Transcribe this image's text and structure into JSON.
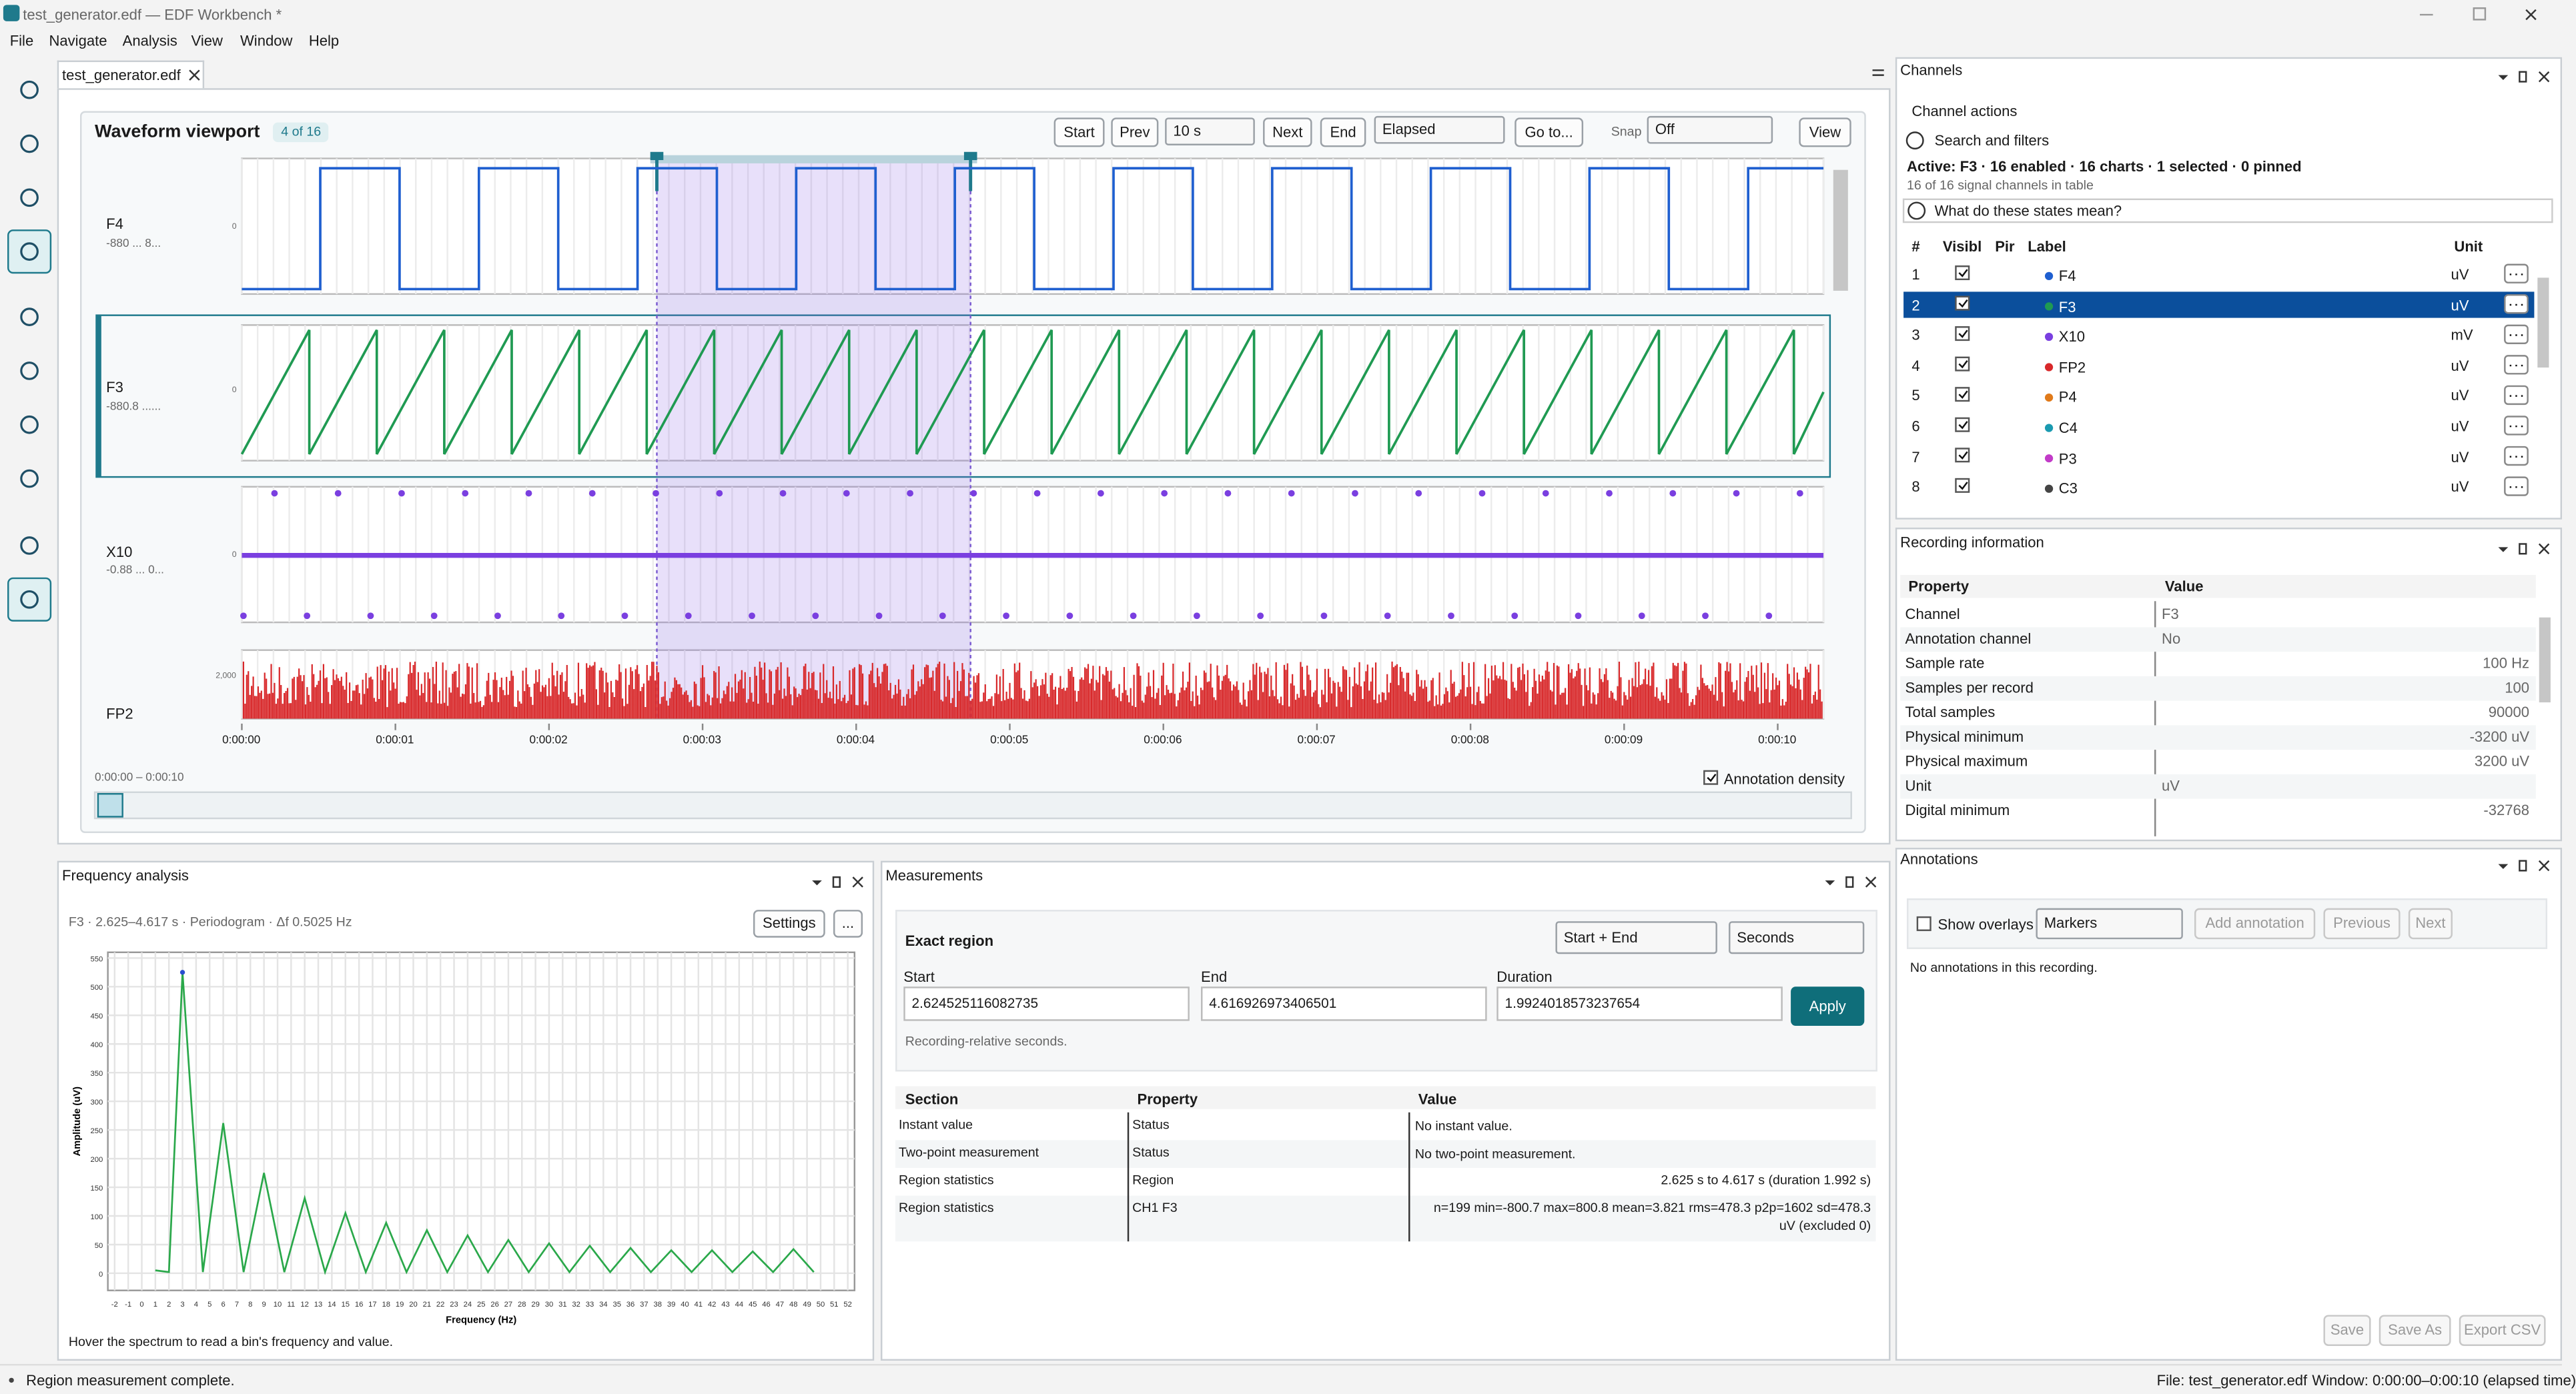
{
  "window": {
    "title": "test_generator.edf — EDF Workbench *"
  },
  "menu": [
    "File",
    "Navigate",
    "Analysis",
    "View",
    "Window",
    "Help"
  ],
  "tab": "test_generator.edf",
  "viewport": {
    "title": "Waveform viewport",
    "badge": "4 of 16",
    "start": "Start",
    "prev": "Prev",
    "duration": "10 s",
    "next": "Next",
    "end": "End",
    "time_mode": "Elapsed",
    "goto": "Go to...",
    "snap_label": "Snap",
    "snap": "Off",
    "view": "View",
    "channels": [
      {
        "name": "F4",
        "range": "-880 ... 8...",
        "zero": "0",
        "color": "#1f5fd0"
      },
      {
        "name": "F3",
        "range": "-880.8 ......",
        "zero": "0",
        "color": "#1f9a52"
      },
      {
        "name": "X10",
        "range": "-0.88 ... 0...",
        "zero": "0",
        "color": "#7a3fe0"
      },
      {
        "name": "FP2",
        "top": "2,000",
        "color": "#d8282a"
      }
    ],
    "time_ticks": [
      "0:00:00",
      "0:00:01",
      "0:00:02",
      "0:00:03",
      "0:00:04",
      "0:00:05",
      "0:00:06",
      "0:00:07",
      "0:00:08",
      "0:00:09",
      "0:00:10"
    ],
    "range": "0:00:00 – 0:00:10",
    "annotation_density": "Annotation density"
  },
  "channels_panel": {
    "title": "Channels",
    "actions": "Channel actions",
    "search": "Search and filters",
    "active": "Active: F3 · 16 enabled · 16 charts · 1 selected · 0 pinned",
    "count": "16 of 16 signal channels in table",
    "help": "What do these states mean?",
    "columns": [
      "#",
      "Visibl",
      "Pir",
      "Label",
      "Unit"
    ],
    "rows": [
      {
        "n": "1",
        "label": "F4",
        "unit": "uV",
        "color": "#1f5fd0"
      },
      {
        "n": "2",
        "label": "F3",
        "unit": "uV",
        "color": "#1f9a52"
      },
      {
        "n": "3",
        "label": "X10",
        "unit": "mV",
        "color": "#7a3fe0"
      },
      {
        "n": "4",
        "label": "FP2",
        "unit": "uV",
        "color": "#d8282a"
      },
      {
        "n": "5",
        "label": "P4",
        "unit": "uV",
        "color": "#e07a1a"
      },
      {
        "n": "6",
        "label": "C4",
        "unit": "uV",
        "color": "#1a9ab0"
      },
      {
        "n": "7",
        "label": "P3",
        "unit": "uV",
        "color": "#c23bc8"
      },
      {
        "n": "8",
        "label": "C3",
        "unit": "uV",
        "color": "#444444"
      }
    ]
  },
  "recording": {
    "title": "Recording information",
    "columns": [
      "Property",
      "Value"
    ],
    "rows": [
      [
        "Channel",
        "F3"
      ],
      [
        "Annotation channel",
        "No"
      ],
      [
        "Sample rate",
        "100 Hz"
      ],
      [
        "Samples per record",
        "100"
      ],
      [
        "Total samples",
        "90000"
      ],
      [
        "Physical minimum",
        "-3200 uV"
      ],
      [
        "Physical maximum",
        "3200 uV"
      ],
      [
        "Unit",
        "uV"
      ],
      [
        "Digital minimum",
        "-32768"
      ]
    ]
  },
  "frequency": {
    "title": "Frequency analysis",
    "subtitle": "F3 · 2.625–4.617 s · Periodogram · Δf 0.5025 Hz",
    "settings": "Settings",
    "more": "...",
    "hint": "Hover the spectrum to read a bin's frequency and value."
  },
  "chart_data": {
    "type": "line",
    "x_label": "Frequency (Hz)",
    "y_label": "Amplitude (uV)",
    "color": "#2aa84a",
    "grid": true,
    "x": [
      1,
      2,
      3,
      4.5,
      6,
      7.5,
      9,
      10.5,
      12,
      13.5,
      15,
      16.5,
      18,
      19.5,
      21,
      22.5,
      24,
      25.5,
      27,
      28.5,
      30,
      31.5,
      33,
      34.5,
      36,
      37.5,
      39,
      40.5,
      42,
      43.5,
      45,
      46.5,
      48,
      49.5
    ],
    "values": [
      5,
      2,
      525,
      2,
      262,
      2,
      175,
      2,
      131,
      2,
      105,
      2,
      88,
      2,
      75,
      2,
      66,
      2,
      58,
      2,
      52,
      2,
      48,
      2,
      44,
      2,
      40,
      2,
      40,
      2,
      38,
      2,
      42,
      2
    ],
    "xlim": [
      -2.5,
      52.5
    ],
    "ylim": [
      -30,
      560
    ],
    "xticks": [
      -2,
      -1,
      0,
      1,
      2,
      3,
      4,
      5,
      6,
      7,
      8,
      9,
      10,
      11,
      12,
      13,
      14,
      15,
      16,
      17,
      18,
      19,
      20,
      21,
      22,
      23,
      24,
      25,
      26,
      27,
      28,
      29,
      30,
      31,
      32,
      33,
      34,
      35,
      36,
      37,
      38,
      39,
      40,
      41,
      42,
      43,
      44,
      45,
      46,
      47,
      48,
      49,
      50,
      51,
      52
    ],
    "yticks": [
      0,
      50,
      100,
      150,
      200,
      250,
      300,
      350,
      400,
      450,
      500,
      550
    ]
  },
  "measurements": {
    "title": "Measurements",
    "region_title": "Exact region",
    "mode": "Start + End",
    "units": "Seconds",
    "fields": [
      {
        "label": "Start",
        "value": "2.624525116082735"
      },
      {
        "label": "End",
        "value": "4.616926973406501"
      },
      {
        "label": "Duration",
        "value": "1.9924018573237654"
      }
    ],
    "apply": "Apply",
    "note": "Recording-relative seconds.",
    "columns": [
      "Section",
      "Property",
      "Value"
    ],
    "rows": [
      [
        "Instant value",
        "Status",
        "No instant value."
      ],
      [
        "Two-point measurement",
        "Status",
        "No two-point measurement."
      ],
      [
        "Region statistics",
        "Region",
        "2.625 s to 4.617 s (duration 1.992 s)"
      ],
      [
        "Region statistics",
        "CH1 F3",
        "n=199 min=-800.7 max=800.8 mean=3.821 rms=478.3 p2p=1602 sd=478.3 uV (excluded 0)"
      ]
    ]
  },
  "annotations": {
    "title": "Annotations",
    "show_overlays": "Show overlays",
    "kind": "Markers",
    "add": "Add annotation",
    "previous": "Previous",
    "next": "Next",
    "empty": "No annotations in this recording.",
    "save": "Save",
    "save_as": "Save As",
    "export": "Export CSV"
  },
  "status": {
    "message": "Region measurement complete.",
    "file": "File: test_generator.edf",
    "window": "Window: 0:00:00–0:00:10 (elapsed time)"
  }
}
